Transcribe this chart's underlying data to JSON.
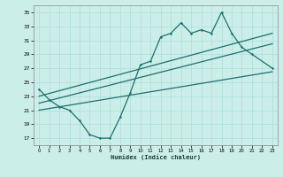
{
  "xlabel": "Humidex (Indice chaleur)",
  "bg_color": "#cceee8",
  "grid_color": "#aaddda",
  "line_color": "#1a7070",
  "main_x": [
    0,
    1,
    2,
    3,
    4,
    5,
    6,
    7,
    8,
    9,
    10,
    11,
    12,
    13,
    14,
    15,
    16,
    17,
    18,
    19,
    20,
    21,
    23
  ],
  "main_y": [
    24,
    22.5,
    21.5,
    21,
    19.5,
    17.5,
    17,
    17,
    20,
    23.5,
    27.5,
    28,
    31.5,
    32,
    33.5,
    32,
    32.5,
    32,
    35,
    32,
    30,
    29,
    27
  ],
  "last_x": [
    23
  ],
  "last_y": [
    27
  ],
  "trend1_x": [
    0,
    23
  ],
  "trend1_y": [
    23.0,
    32.0
  ],
  "trend2_x": [
    0,
    23
  ],
  "trend2_y": [
    22.0,
    30.5
  ],
  "trend3_x": [
    0,
    23
  ],
  "trend3_y": [
    21.0,
    26.5
  ],
  "ylim": [
    16,
    36
  ],
  "yticks": [
    17,
    19,
    21,
    23,
    25,
    27,
    29,
    31,
    33,
    35
  ],
  "xlim": [
    -0.5,
    23.5
  ],
  "xticks": [
    0,
    1,
    2,
    3,
    4,
    5,
    6,
    7,
    8,
    9,
    10,
    11,
    12,
    13,
    14,
    15,
    16,
    17,
    18,
    19,
    20,
    21,
    22,
    23
  ]
}
